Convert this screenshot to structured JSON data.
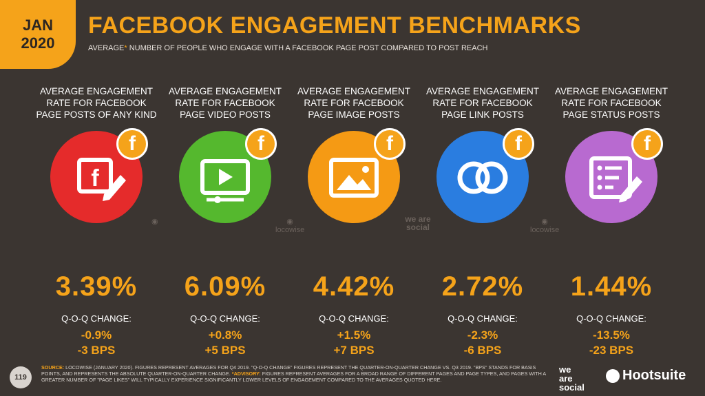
{
  "badge": {
    "month": "JAN",
    "year": "2020"
  },
  "title": "FACEBOOK ENGAGEMENT BENCHMARKS",
  "subtitle": {
    "pre": "AVERAGE",
    "star": "*",
    "post": " NUMBER OF PEOPLE WHO ENGAGE WITH A FACEBOOK PAGE POST COMPARED TO POST REACH"
  },
  "columns": [
    {
      "heading": "AVERAGE ENGAGEMENT RATE FOR FACEBOOK PAGE POSTS OF ANY KIND",
      "icon": "facebook-edit-icon",
      "color": "#e52b2b",
      "value": "3.39%",
      "qoq_label": "Q-O-Q CHANGE:",
      "change_pct": "-0.9%",
      "change_bps": "-3 BPS"
    },
    {
      "heading": "AVERAGE ENGAGEMENT RATE FOR FACEBOOK PAGE VIDEO POSTS",
      "icon": "video-icon",
      "color": "#55b82e",
      "value": "6.09%",
      "qoq_label": "Q-O-Q CHANGE:",
      "change_pct": "+0.8%",
      "change_bps": "+5 BPS"
    },
    {
      "heading": "AVERAGE ENGAGEMENT RATE FOR FACEBOOK PAGE IMAGE POSTS",
      "icon": "image-icon",
      "color": "#f59a14",
      "value": "4.42%",
      "qoq_label": "Q-O-Q CHANGE:",
      "change_pct": "+1.5%",
      "change_bps": "+7 BPS"
    },
    {
      "heading": "AVERAGE ENGAGEMENT RATE FOR FACEBOOK PAGE LINK POSTS",
      "icon": "link-icon",
      "color": "#2a7de0",
      "value": "2.72%",
      "qoq_label": "Q-O-Q CHANGE:",
      "change_pct": "-2.3%",
      "change_bps": "-6 BPS"
    },
    {
      "heading": "AVERAGE ENGAGEMENT RATE FOR FACEBOOK PAGE STATUS POSTS",
      "icon": "status-icon",
      "color": "#b86ad0",
      "value": "1.44%",
      "qoq_label": "Q-O-Q CHANGE:",
      "change_pct": "-13.5%",
      "change_bps": "-23 BPS"
    }
  ],
  "badge_letter": "f",
  "watermarks": {
    "locowise": "locowise",
    "we_are_social": "we are social"
  },
  "page_number": "119",
  "footer": {
    "source_label": "SOURCE:",
    "source_text": " LOCOWISE (JANUARY 2020). FIGURES REPRESENT AVERAGES FOR Q4 2019. \"Q-O-Q CHANGE\" FIGURES REPRESENT THE QUARTER-ON-QUARTER CHANGE vs. Q3 2019. \"BPS\" STANDS FOR BASIS POINTS, AND REPRESENTS THE ABSOLUTE QUARTER-ON-QUARTER CHANGE. ",
    "advisory_label": "*ADVISORY:",
    "advisory_text": " FIGURES REPRESENT AVERAGES FOR A BROAD RANGE OF DIFFERENT PAGES AND PAGE TYPES, AND PAGES WITH A GREATER NUMBER OF \"PAGE LIKES\" WILL TYPICALLY EXPERIENCE SIGNIFICANTLY LOWER LEVELS OF ENGAGEMENT COMPARED TO THE AVERAGES QUOTED HERE."
  },
  "logos": {
    "we": "we",
    "are": "are",
    "social": "social",
    "hootsuite": "Hootsuite"
  }
}
